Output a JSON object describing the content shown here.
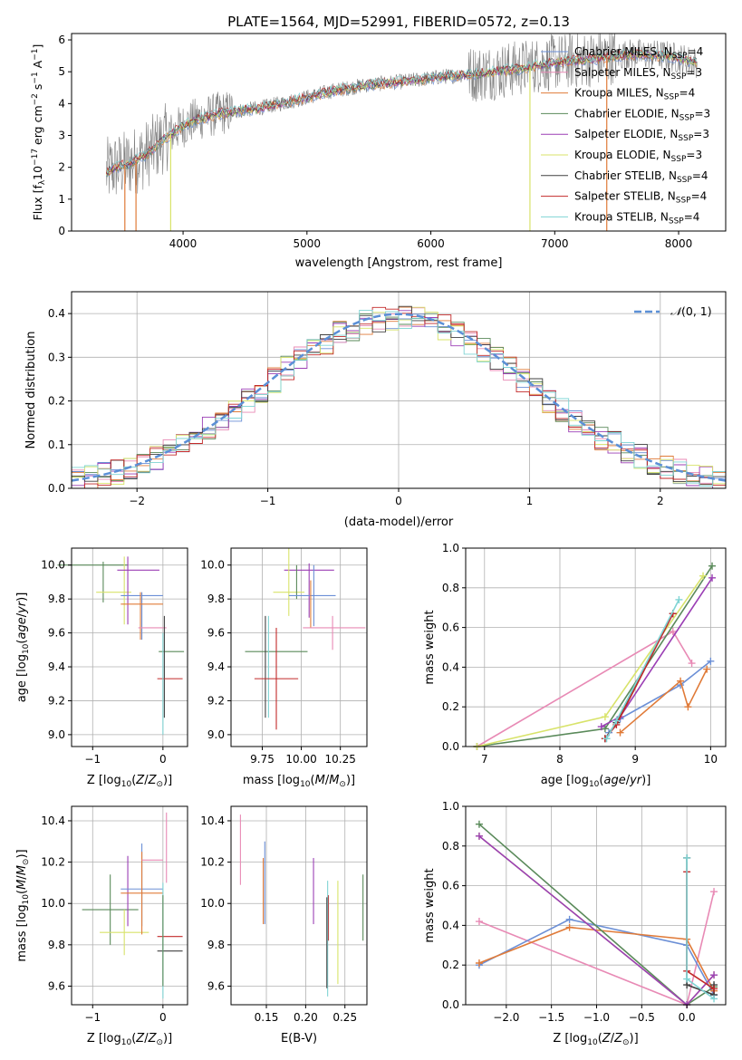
{
  "figure": {
    "title": "PLATE=1564, MJD=52991, FIBERID=0572, z=0.13"
  },
  "colors": {
    "CM": "#6b8fd6",
    "SM": "#e07b39",
    "KM": "#e07b39",
    "CE": "#5a8a5a",
    "SE": "#9b3fb5",
    "KE": "#d8e36a",
    "CS": "#404040",
    "SS": "#c22a2a",
    "KS": "#7fd4d4",
    "spectrum": "#808080",
    "pink": "#e88ab5",
    "gauss": "#5b8fd6"
  },
  "chart_data": [
    {
      "id": "spectrum",
      "type": "line",
      "xlabel": "wavelength [Angstrom, rest frame]",
      "ylabel": "Flux [f_λ 10^-17 erg cm^-2 s^-1 A^-1]",
      "xlim": [
        3100,
        8380
      ],
      "ylim": [
        0,
        6.2
      ],
      "xticks": [
        4000,
        5000,
        6000,
        7000,
        8000
      ],
      "yticks": [
        0,
        1,
        2,
        3,
        4,
        5,
        6
      ],
      "legend": {
        "placement": "right",
        "entries": [
          {
            "label": "Chabrier MILES, N_SSP=4",
            "color": "CM"
          },
          {
            "label": "Salpeter MILES, N_SSP=3",
            "color": "pink"
          },
          {
            "label": "Kroupa MILES, N_SSP=4",
            "color": "SM"
          },
          {
            "label": "Chabrier ELODIE, N_SSP=3",
            "color": "CE"
          },
          {
            "label": "Salpeter ELODIE, N_SSP=3",
            "color": "SE"
          },
          {
            "label": "Kroupa ELODIE, N_SSP=3",
            "color": "KE"
          },
          {
            "label": "Chabrier STELIB, N_SSP=4",
            "color": "CS"
          },
          {
            "label": "Salpeter STELIB, N_SSP=4",
            "color": "SS"
          },
          {
            "label": "Kroupa STELIB, N_SSP=4",
            "color": "KS"
          }
        ]
      },
      "continuum": [
        [
          3380,
          1.85
        ],
        [
          3450,
          2.0
        ],
        [
          3550,
          2.1
        ],
        [
          3700,
          2.4
        ],
        [
          3850,
          2.9
        ],
        [
          3950,
          3.2
        ],
        [
          4100,
          3.5
        ],
        [
          4300,
          3.7
        ],
        [
          4600,
          3.85
        ],
        [
          4900,
          4.1
        ],
        [
          5200,
          4.4
        ],
        [
          5500,
          4.6
        ],
        [
          5800,
          4.7
        ],
        [
          6100,
          4.85
        ],
        [
          6400,
          4.95
        ],
        [
          6700,
          5.1
        ],
        [
          7000,
          5.3
        ],
        [
          7300,
          5.4
        ],
        [
          7600,
          5.55
        ],
        [
          7900,
          5.5
        ],
        [
          8150,
          5.3
        ]
      ],
      "spikes_down": [
        [
          3530,
          0
        ],
        [
          3620,
          0
        ],
        [
          3900,
          0
        ],
        [
          6800,
          0
        ],
        [
          7420,
          0
        ]
      ]
    },
    {
      "id": "residuals",
      "type": "step",
      "xlabel": "(data-model)/error",
      "ylabel": "Normed distribution",
      "xlim": [
        -2.5,
        2.5
      ],
      "ylim": [
        0,
        0.45
      ],
      "xticks": [
        -2,
        -1,
        0,
        1,
        2
      ],
      "yticks": [
        0.0,
        0.1,
        0.2,
        0.3,
        0.4
      ],
      "grid": true,
      "legend": {
        "placement": "top-right",
        "entries": [
          {
            "label": "𝒩(0,1)",
            "color": "gauss",
            "dashed": true
          }
        ]
      }
    },
    {
      "id": "age_vs_Z",
      "type": "errorbar",
      "xlabel": "Z [log10(Z/Z☉)]",
      "ylabel": "age  [log10(age/yr)]",
      "xlim": [
        -1.3,
        0.35
      ],
      "ylim": [
        8.93,
        10.1
      ],
      "xticks": [
        -1,
        0
      ],
      "yticks": [
        9.0,
        9.2,
        9.4,
        9.6,
        9.8,
        10.0
      ],
      "points": [
        {
          "c": "CE",
          "x": -1.0,
          "y": 10.0,
          "xe": 0.5,
          "ye": 0.0
        },
        {
          "c": "CE",
          "x": -0.85,
          "y": 9.9,
          "xe": 0.0,
          "ye": 0.12
        },
        {
          "c": "KE",
          "x": -0.7,
          "y": 9.84,
          "xe": 0.25,
          "ye": 0.0
        },
        {
          "c": "KE",
          "x": -0.55,
          "y": 9.85,
          "xe": 0.0,
          "ye": 0.2
        },
        {
          "c": "SE",
          "x": -0.35,
          "y": 9.97,
          "xe": 0.3,
          "ye": 0.0
        },
        {
          "c": "SE",
          "x": -0.5,
          "y": 9.85,
          "xe": 0.0,
          "ye": 0.2
        },
        {
          "c": "CM",
          "x": -0.3,
          "y": 9.82,
          "xe": 0.3,
          "ye": 0.0
        },
        {
          "c": "CM",
          "x": -0.3,
          "y": 9.7,
          "xe": 0.0,
          "ye": 0.14
        },
        {
          "c": "SM",
          "x": -0.3,
          "y": 9.77,
          "xe": 0.3,
          "ye": 0.0
        },
        {
          "c": "SM",
          "x": -0.32,
          "y": 9.7,
          "xe": 0.0,
          "ye": 0.14
        },
        {
          "c": "pink",
          "x": -0.15,
          "y": 9.63,
          "xe": 0.2,
          "ye": 0.0
        },
        {
          "c": "CE",
          "x": 0.12,
          "y": 9.49,
          "xe": 0.18,
          "ye": 0.0
        },
        {
          "c": "CS",
          "x": 0.02,
          "y": 9.4,
          "xe": 0.0,
          "ye": 0.3
        },
        {
          "c": "SS",
          "x": 0.1,
          "y": 9.33,
          "xe": 0.18,
          "ye": 0.0
        },
        {
          "c": "KS",
          "x": 0.0,
          "y": 9.3,
          "xe": 0.0,
          "ye": 0.3
        }
      ]
    },
    {
      "id": "age_vs_mass",
      "type": "errorbar",
      "xlabel": "mass [log10(M/M☉)]",
      "ylabel": "",
      "xlim": [
        9.55,
        10.42
      ],
      "ylim": [
        8.93,
        10.1
      ],
      "xticks": [
        9.75,
        10.0,
        10.25
      ],
      "xticklabels": [
        "9.75",
        "10.00",
        "10.25"
      ],
      "yticks": [
        9.0,
        9.2,
        9.4,
        9.6,
        9.8,
        10.0
      ],
      "points": [
        {
          "c": "SE",
          "x": 10.05,
          "y": 9.97,
          "xe": 0.16,
          "ye": 0.0
        },
        {
          "c": "SE",
          "x": 10.05,
          "y": 9.85,
          "xe": 0.0,
          "ye": 0.16
        },
        {
          "c": "KE",
          "x": 9.92,
          "y": 9.84,
          "xe": 0.1,
          "ye": 0.0
        },
        {
          "c": "KE",
          "x": 9.92,
          "y": 9.9,
          "xe": 0.0,
          "ye": 0.2
        },
        {
          "c": "CE",
          "x": 9.97,
          "y": 9.9,
          "xe": 0.0,
          "ye": 0.1
        },
        {
          "c": "CM",
          "x": 10.07,
          "y": 9.82,
          "xe": 0.15,
          "ye": 0.0
        },
        {
          "c": "CM",
          "x": 10.08,
          "y": 9.82,
          "xe": 0.0,
          "ye": 0.18
        },
        {
          "c": "SM",
          "x": 10.06,
          "y": 9.77,
          "xe": 0.0,
          "ye": 0.14
        },
        {
          "c": "pink",
          "x": 10.21,
          "y": 9.63,
          "xe": 0.2,
          "ye": 0.0
        },
        {
          "c": "pink",
          "x": 10.2,
          "y": 9.6,
          "xe": 0.0,
          "ye": 0.1
        },
        {
          "c": "CE",
          "x": 9.84,
          "y": 9.49,
          "xe": 0.2,
          "ye": 0.0
        },
        {
          "c": "CS",
          "x": 9.77,
          "y": 9.4,
          "xe": 0.0,
          "ye": 0.3
        },
        {
          "c": "KS",
          "x": 9.79,
          "y": 9.4,
          "xe": 0.0,
          "ye": 0.3
        },
        {
          "c": "SS",
          "x": 9.84,
          "y": 9.33,
          "xe": 0.14,
          "ye": 0.0
        },
        {
          "c": "SS",
          "x": 9.84,
          "y": 9.33,
          "xe": 0.0,
          "ye": 0.3
        }
      ]
    },
    {
      "id": "mw_vs_age",
      "type": "line",
      "xlabel": "age  [log10(age/yr)]",
      "ylabel": "mass weight",
      "xlim": [
        6.75,
        10.2
      ],
      "ylim": [
        0,
        1.0
      ],
      "xticks": [
        7,
        8,
        9,
        10
      ],
      "yticks": [
        0.0,
        0.2,
        0.4,
        0.6,
        0.8,
        1.0
      ],
      "grid": true,
      "series": [
        {
          "c": "pink",
          "x": [
            6.9,
            9.5,
            9.75
          ],
          "y": [
            0.0,
            0.58,
            0.42
          ]
        },
        {
          "c": "CM",
          "x": [
            8.65,
            8.8,
            9.6,
            10.0
          ],
          "y": [
            0.07,
            0.14,
            0.31,
            0.43
          ]
        },
        {
          "c": "SM",
          "x": [
            8.8,
            9.6,
            9.7,
            9.95
          ],
          "y": [
            0.07,
            0.33,
            0.2,
            0.39
          ]
        },
        {
          "c": "CE",
          "x": [
            6.9,
            8.6,
            10.02
          ],
          "y": [
            0.0,
            0.09,
            0.91
          ]
        },
        {
          "c": "KE",
          "x": [
            6.9,
            8.6,
            9.9
          ],
          "y": [
            0.0,
            0.15,
            0.86
          ]
        },
        {
          "c": "SE",
          "x": [
            8.55,
            8.8,
            10.02
          ],
          "y": [
            0.1,
            0.15,
            0.85
          ]
        },
        {
          "c": "CS",
          "x": [
            8.6,
            8.75,
            9.5
          ],
          "y": [
            0.04,
            0.12,
            0.67
          ]
        },
        {
          "c": "SS",
          "x": [
            8.6,
            8.75,
            9.5
          ],
          "y": [
            0.04,
            0.11,
            0.67
          ]
        },
        {
          "c": "KS",
          "x": [
            8.62,
            8.75,
            9.58
          ],
          "y": [
            0.04,
            0.13,
            0.74
          ]
        }
      ]
    },
    {
      "id": "mass_vs_Z",
      "type": "errorbar",
      "xlabel": "Z [log10(Z/Z☉)]",
      "ylabel": "mass [log10(M/M☉)]",
      "xlim": [
        -1.3,
        0.35
      ],
      "ylim": [
        9.51,
        10.47
      ],
      "xticks": [
        -1,
        0
      ],
      "yticks": [
        9.6,
        9.8,
        10.0,
        10.2,
        10.4
      ],
      "points": [
        {
          "c": "CE",
          "x": -0.75,
          "y": 9.97,
          "xe": 0.4,
          "ye": 0.0
        },
        {
          "c": "CE",
          "x": -0.75,
          "y": 9.97,
          "xe": 0.0,
          "ye": 0.17
        },
        {
          "c": "KE",
          "x": -0.55,
          "y": 9.86,
          "xe": 0.35,
          "ye": 0.0
        },
        {
          "c": "KE",
          "x": -0.55,
          "y": 9.86,
          "xe": 0.0,
          "ye": 0.11
        },
        {
          "c": "SE",
          "x": -0.5,
          "y": 10.06,
          "xe": 0.0,
          "ye": 0.17
        },
        {
          "c": "CM",
          "x": -0.3,
          "y": 10.07,
          "xe": 0.3,
          "ye": 0.0
        },
        {
          "c": "CM",
          "x": -0.3,
          "y": 10.09,
          "xe": 0.0,
          "ye": 0.2
        },
        {
          "c": "SM",
          "x": -0.3,
          "y": 10.05,
          "xe": 0.3,
          "ye": 0.0
        },
        {
          "c": "SM",
          "x": -0.3,
          "y": 10.05,
          "xe": 0.0,
          "ye": 0.2
        },
        {
          "c": "pink",
          "x": -0.15,
          "y": 10.21,
          "xe": 0.15,
          "ye": 0.0
        },
        {
          "c": "pink",
          "x": 0.05,
          "y": 10.27,
          "xe": 0.0,
          "ye": 0.17
        },
        {
          "c": "SS",
          "x": 0.1,
          "y": 9.84,
          "xe": 0.18,
          "ye": 0.0
        },
        {
          "c": "CS",
          "x": 0.1,
          "y": 9.77,
          "xe": 0.18,
          "ye": 0.0
        },
        {
          "c": "KS",
          "x": 0.0,
          "y": 9.82,
          "xe": 0.0,
          "ye": 0.28
        },
        {
          "c": "CE",
          "x": 0.0,
          "y": 9.82,
          "xe": 0.0,
          "ye": 0.22
        }
      ]
    },
    {
      "id": "mass_vs_EBV",
      "type": "errorbar",
      "xlabel": "E(B-V)",
      "ylabel": "",
      "xlim": [
        0.105,
        0.278
      ],
      "ylim": [
        9.51,
        10.47
      ],
      "xticks": [
        0.15,
        0.2,
        0.25
      ],
      "xticklabels": [
        "0.15",
        "0.20",
        "0.25"
      ],
      "yticks": [
        9.6,
        9.8,
        10.0,
        10.2,
        10.4
      ],
      "points": [
        {
          "c": "pink",
          "x": 0.117,
          "y": 10.26,
          "xe": 0.0,
          "ye": 0.17
        },
        {
          "c": "CM",
          "x": 0.148,
          "y": 10.1,
          "xe": 0.0,
          "ye": 0.2
        },
        {
          "c": "SM",
          "x": 0.146,
          "y": 10.06,
          "xe": 0.0,
          "ye": 0.16
        },
        {
          "c": "SE",
          "x": 0.21,
          "y": 10.06,
          "xe": 0.0,
          "ye": 0.16
        },
        {
          "c": "SS",
          "x": 0.229,
          "y": 9.93,
          "xe": 0.0,
          "ye": 0.11
        },
        {
          "c": "KS",
          "x": 0.228,
          "y": 9.83,
          "xe": 0.0,
          "ye": 0.28
        },
        {
          "c": "CS",
          "x": 0.227,
          "y": 9.81,
          "xe": 0.0,
          "ye": 0.22
        },
        {
          "c": "KE",
          "x": 0.241,
          "y": 9.86,
          "xe": 0.0,
          "ye": 0.25
        },
        {
          "c": "CE",
          "x": 0.273,
          "y": 9.98,
          "xe": 0.0,
          "ye": 0.16
        }
      ]
    },
    {
      "id": "mw_vs_Z",
      "type": "line",
      "xlabel": "Z [log10(Z/Z☉)]",
      "ylabel": "mass weight",
      "xlim": [
        -2.45,
        0.43
      ],
      "ylim": [
        0,
        1.0
      ],
      "xticks": [
        -2.0,
        -1.5,
        -1.0,
        -0.5,
        0.0
      ],
      "xticklabels": [
        "−2.0",
        "−1.5",
        "−1.0",
        "−0.5",
        "0.0"
      ],
      "yticks": [
        0.0,
        0.2,
        0.4,
        0.6,
        0.8,
        1.0
      ],
      "grid": true,
      "series": [
        {
          "c": "pink",
          "x": [
            -2.3,
            0.0,
            0.3
          ],
          "y": [
            0.42,
            0.0,
            0.57
          ]
        },
        {
          "c": "CM",
          "x": [
            -2.3,
            -1.3,
            0.0,
            0.3
          ],
          "y": [
            0.2,
            0.43,
            0.3,
            0.05
          ]
        },
        {
          "c": "SM",
          "x": [
            -2.3,
            -1.3,
            0.0,
            0.3
          ],
          "y": [
            0.21,
            0.39,
            0.33,
            0.07
          ]
        },
        {
          "c": "CE",
          "x": [
            -2.3,
            0.0,
            0.3
          ],
          "y": [
            0.91,
            0.0,
            0.09
          ]
        },
        {
          "c": "KE",
          "x": [
            -2.3,
            0.0,
            0.3
          ],
          "y": [
            0.85,
            0.0,
            0.15
          ]
        },
        {
          "c": "SE",
          "x": [
            -2.3,
            0.0,
            0.3
          ],
          "y": [
            0.85,
            0.0,
            0.15
          ]
        },
        {
          "c": "CS",
          "x": [
            0.0,
            0.0,
            0.3,
            0.3
          ],
          "y": [
            0.74,
            0.1,
            0.05,
            0.1
          ]
        },
        {
          "c": "SS",
          "x": [
            0.0,
            0.0,
            0.3
          ],
          "y": [
            0.67,
            0.17,
            0.08
          ]
        },
        {
          "c": "KS",
          "x": [
            0.0,
            0.0,
            0.3
          ],
          "y": [
            0.74,
            0.13,
            0.03
          ]
        }
      ]
    }
  ]
}
